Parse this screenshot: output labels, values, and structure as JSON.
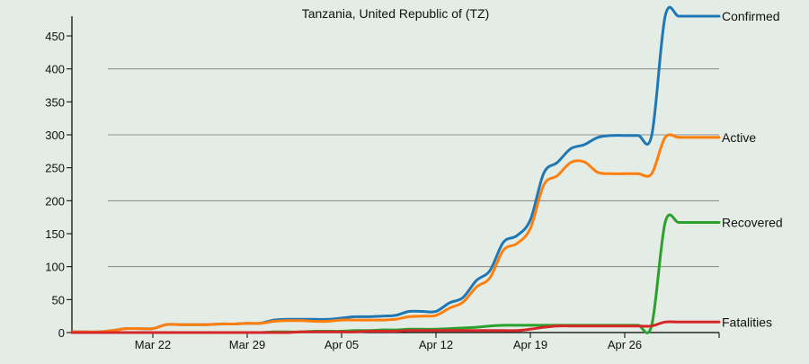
{
  "chart_data": {
    "type": "line",
    "title": "Tanzania, United Republic of (TZ)",
    "xlabel": "",
    "ylabel": "",
    "x_tick_labels": [
      "Mar 22",
      "Mar 29",
      "Apr 05",
      "Apr 12",
      "Apr 19",
      "Apr 26"
    ],
    "x_tick_days": [
      6,
      13,
      20,
      27,
      34,
      41
    ],
    "x_range_days": [
      0,
      48
    ],
    "ylim": [
      0,
      480
    ],
    "y_ticks": [
      0,
      50,
      100,
      150,
      200,
      250,
      300,
      350,
      400,
      450
    ],
    "gridlines": [
      100,
      200,
      300,
      400
    ],
    "legend": "right-end labels",
    "series": [
      {
        "name": "Confirmed",
        "color": "#1f77b4",
        "values": [
          1,
          1,
          1,
          3,
          6,
          6,
          6,
          12,
          12,
          12,
          12,
          13,
          13,
          14,
          14,
          19,
          20,
          20,
          20,
          20,
          22,
          24,
          24,
          25,
          26,
          32,
          32,
          32,
          45,
          53,
          79,
          94,
          137,
          147,
          171,
          242,
          258,
          279,
          285,
          296,
          299,
          299,
          299,
          299,
          480,
          480,
          480,
          480,
          480
        ]
      },
      {
        "name": "Active",
        "color": "#ff7f0e",
        "values": [
          1,
          1,
          1,
          3,
          6,
          6,
          6,
          12,
          12,
          12,
          12,
          13,
          13,
          14,
          14,
          17,
          18,
          18,
          17,
          17,
          19,
          19,
          19,
          19,
          20,
          24,
          25,
          26,
          37,
          46,
          69,
          83,
          125,
          135,
          158,
          224,
          238,
          258,
          259,
          243,
          241,
          241,
          241,
          241,
          296,
          296,
          296,
          296,
          296
        ]
      },
      {
        "name": "Recovered",
        "color": "#2ca02c",
        "values": [
          0,
          0,
          0,
          0,
          0,
          0,
          0,
          0,
          0,
          0,
          0,
          0,
          0,
          0,
          0,
          1,
          1,
          1,
          2,
          2,
          2,
          3,
          3,
          4,
          4,
          5,
          5,
          5,
          6,
          7,
          8,
          10,
          11,
          11,
          11,
          11,
          11,
          11,
          11,
          11,
          11,
          11,
          11,
          11,
          167,
          167,
          167,
          167,
          167
        ]
      },
      {
        "name": "Fatalities",
        "color": "#d62728",
        "values": [
          0,
          0,
          0,
          0,
          0,
          0,
          0,
          0,
          0,
          0,
          0,
          0,
          0,
          0,
          0,
          0,
          0,
          1,
          1,
          1,
          1,
          1,
          2,
          2,
          2,
          3,
          3,
          3,
          3,
          3,
          3,
          3,
          3,
          3,
          5,
          8,
          10,
          10,
          10,
          10,
          10,
          10,
          10,
          10,
          16,
          16,
          16,
          16,
          16
        ]
      }
    ]
  }
}
